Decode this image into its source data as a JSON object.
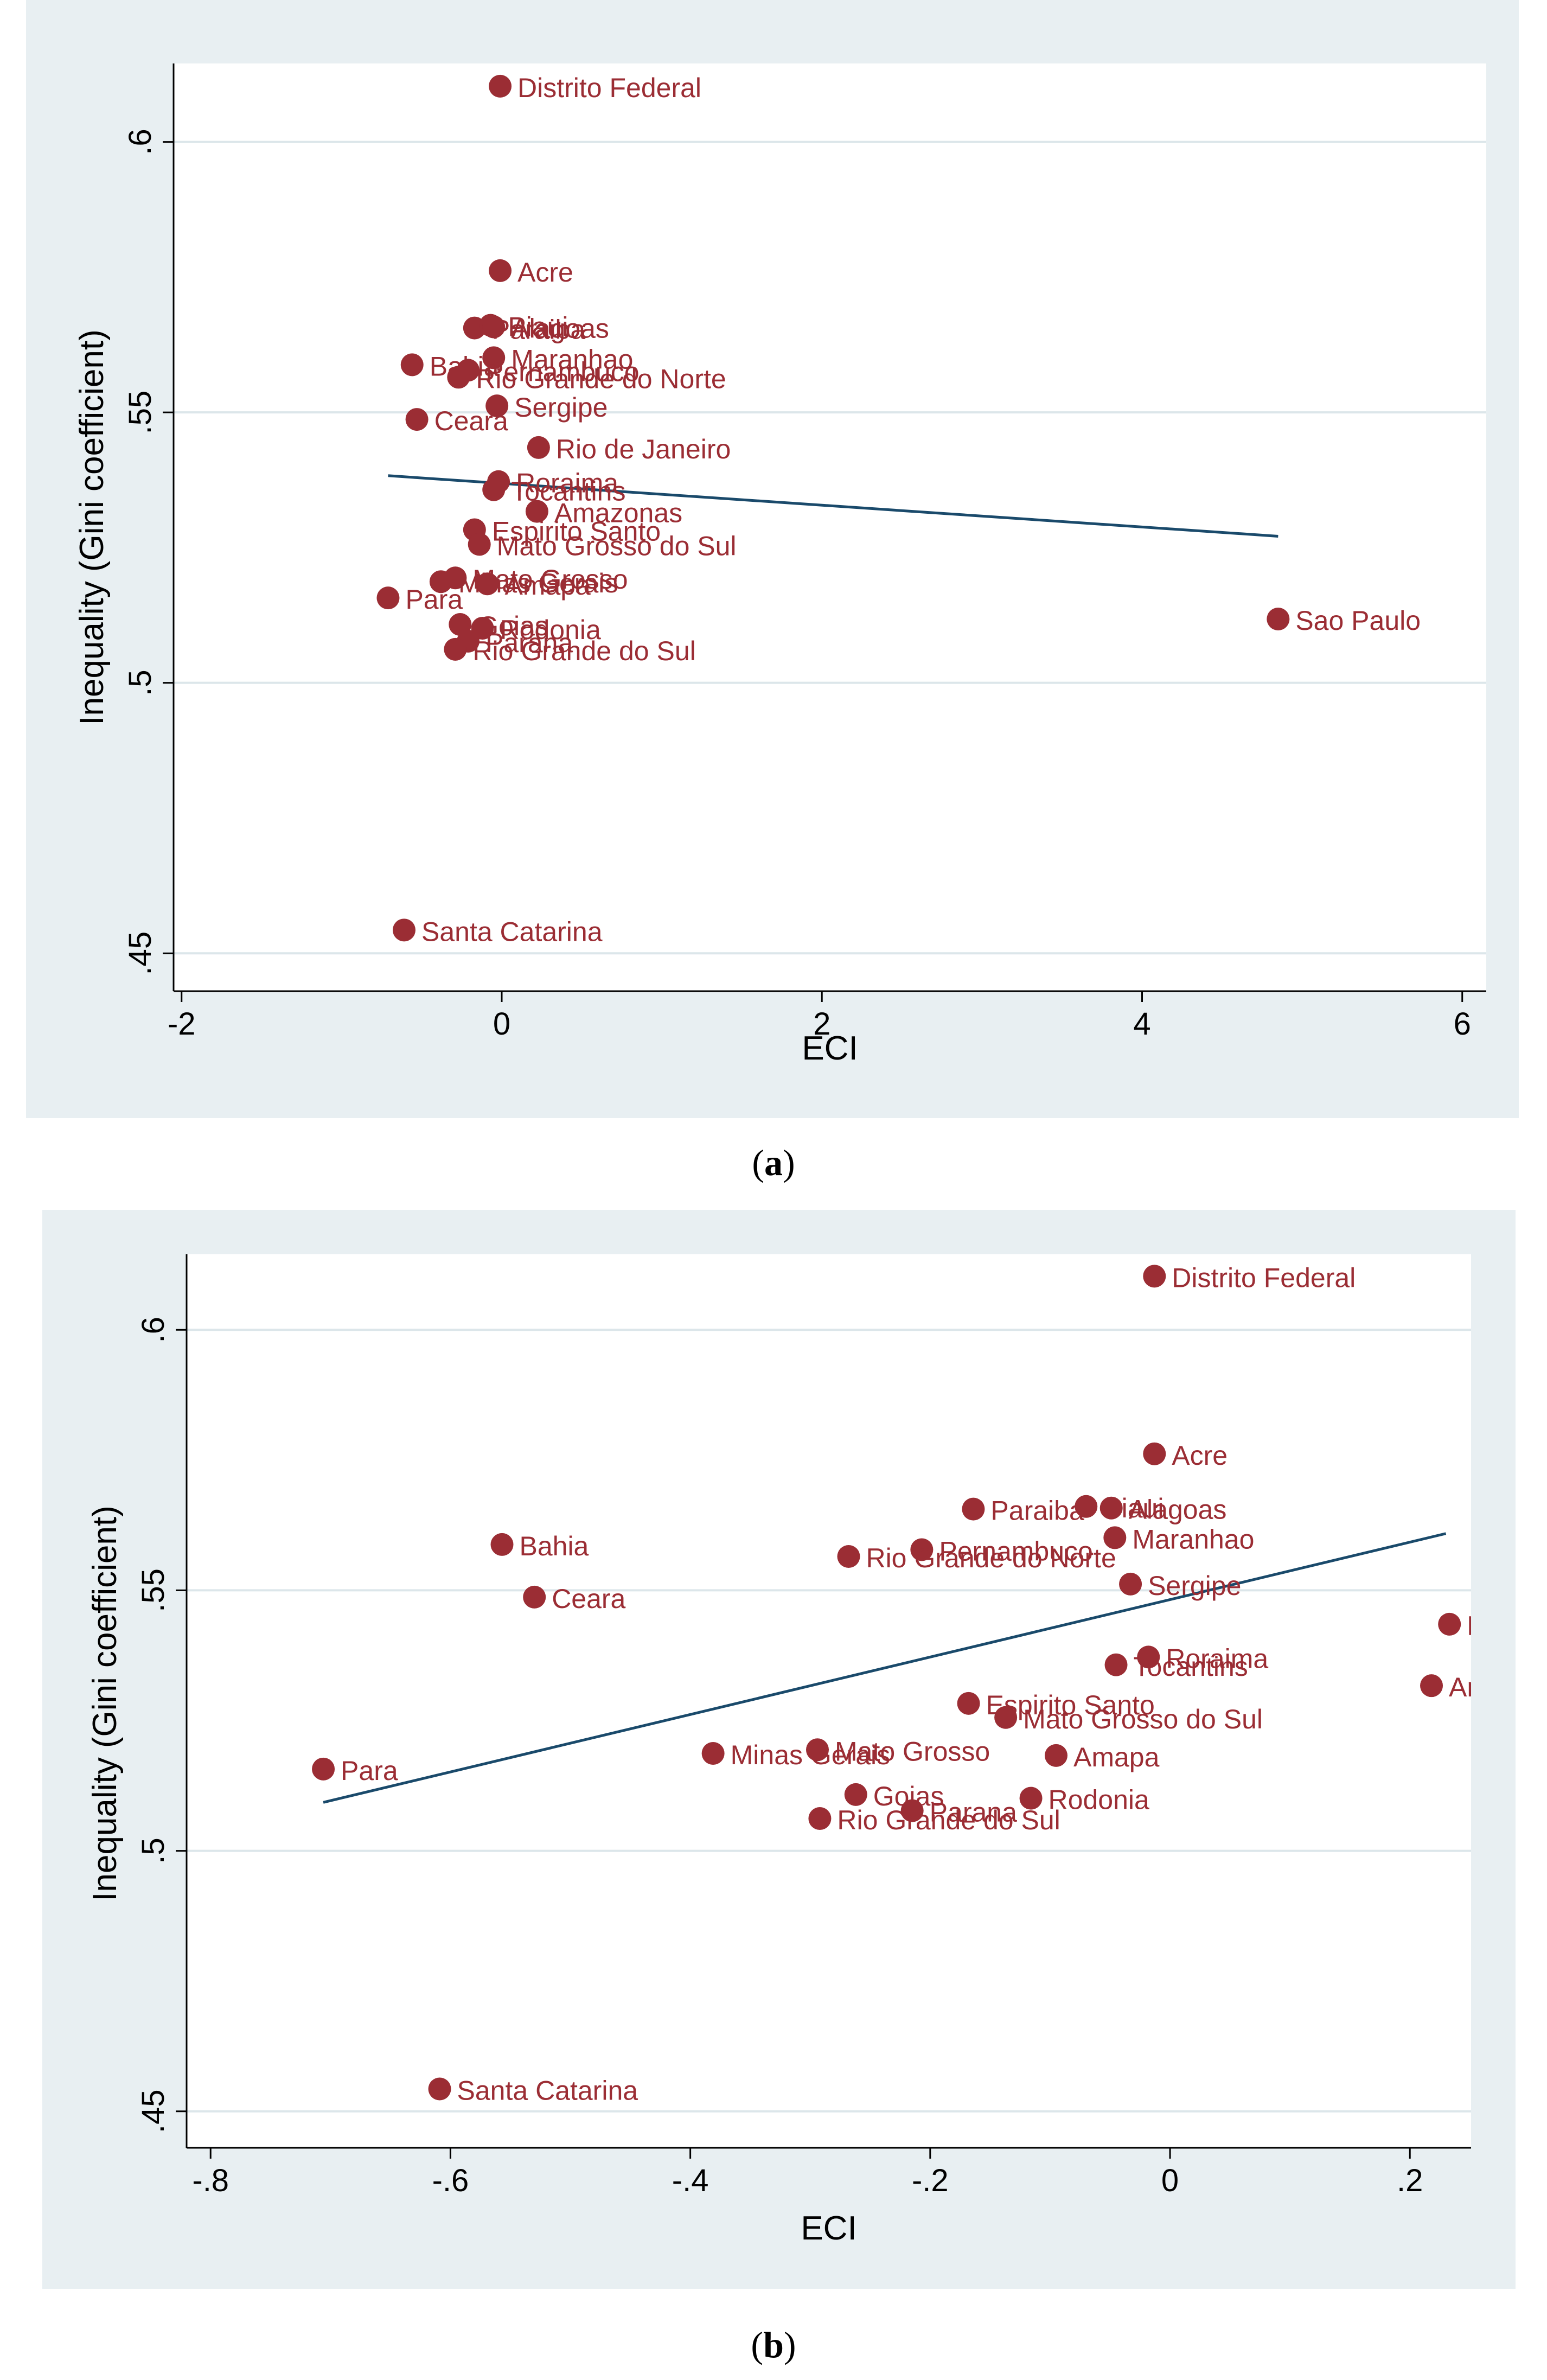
{
  "colors": {
    "panel_bg": "#e8eff2",
    "plot_bg": "#ffffff",
    "grid": "#dce6ea",
    "marker": "#9b2d34",
    "fit_line": "#1a4a6b",
    "axis": "#000000"
  },
  "panels": [
    {
      "caption": "(a)",
      "caption_letter": "a"
    },
    {
      "caption": "(b)",
      "caption_letter": "b"
    }
  ],
  "chart_data": [
    {
      "type": "scatter",
      "title": "",
      "xlabel": "ECI",
      "ylabel": "Inequality (Gini coefficient)",
      "xlim": [
        -2.05,
        6.15
      ],
      "ylim": [
        0.443,
        0.6145
      ],
      "xticks": [
        -2,
        0,
        2,
        4,
        6
      ],
      "xtick_labels": [
        "-2",
        "0",
        "2",
        "4",
        "6"
      ],
      "yticks": [
        0.45,
        0.5,
        0.55,
        0.6
      ],
      "ytick_labels": [
        ".45",
        ".5",
        ".55",
        ".6"
      ],
      "grid": "horizontal",
      "fit_line": {
        "x": [
          -0.71,
          4.85
        ],
        "y": [
          0.5383,
          0.5271
        ]
      },
      "points": [
        {
          "label": "Distrito Federal",
          "x": -0.01,
          "y": 0.6103
        },
        {
          "label": "Acre",
          "x": -0.01,
          "y": 0.5762
        },
        {
          "label": "Paraiba",
          "x": -0.17,
          "y": 0.5656
        },
        {
          "label": "Piaui",
          "x": -0.07,
          "y": 0.5661
        },
        {
          "label": "Alagoas",
          "x": -0.05,
          "y": 0.5658
        },
        {
          "label": "Maranhao",
          "x": -0.05,
          "y": 0.5601
        },
        {
          "label": "Bahia",
          "x": -0.56,
          "y": 0.5588
        },
        {
          "label": "Pernambuco",
          "x": -0.21,
          "y": 0.5578
        },
        {
          "label": "Rio Grande do Norte",
          "x": -0.27,
          "y": 0.5565
        },
        {
          "label": "Sergipe",
          "x": -0.03,
          "y": 0.5512
        },
        {
          "label": "Ceara",
          "x": -0.53,
          "y": 0.5487
        },
        {
          "label": "Rio de Janeiro",
          "x": 0.23,
          "y": 0.5435
        },
        {
          "label": "Roraima",
          "x": -0.02,
          "y": 0.5372
        },
        {
          "label": "Tocantins",
          "x": -0.05,
          "y": 0.5357
        },
        {
          "label": "Amazonas",
          "x": 0.22,
          "y": 0.5317
        },
        {
          "label": "Espirito Santo",
          "x": -0.17,
          "y": 0.5283
        },
        {
          "label": "Mato Grosso do Sul",
          "x": -0.14,
          "y": 0.5256
        },
        {
          "label": "Minas Gerais",
          "x": -0.38,
          "y": 0.5187
        },
        {
          "label": "Mato Grosso",
          "x": -0.29,
          "y": 0.5194
        },
        {
          "label": "Amapa",
          "x": -0.09,
          "y": 0.5183
        },
        {
          "label": "Para",
          "x": -0.71,
          "y": 0.5157
        },
        {
          "label": "Goias",
          "x": -0.26,
          "y": 0.5108
        },
        {
          "label": "Rodonia",
          "x": -0.12,
          "y": 0.5101
        },
        {
          "label": "Parana",
          "x": -0.21,
          "y": 0.5077
        },
        {
          "label": "Rio Grande do Sul",
          "x": -0.29,
          "y": 0.5062
        },
        {
          "label": "Sao Paulo",
          "x": 4.85,
          "y": 0.5118
        },
        {
          "label": "Santa Catarina",
          "x": -0.61,
          "y": 0.4543
        }
      ]
    },
    {
      "type": "scatter",
      "title": "",
      "xlabel": "ECI",
      "ylabel": "Inequality (Gini coefficient)",
      "xlim": [
        -0.82,
        0.251
      ],
      "ylim": [
        0.443,
        0.6145
      ],
      "xticks": [
        -0.8,
        -0.6,
        -0.4,
        -0.2,
        0,
        0.2
      ],
      "xtick_labels": [
        "-.8",
        "-.6",
        "-.4",
        "-.2",
        "0",
        ".2"
      ],
      "yticks": [
        0.45,
        0.5,
        0.55,
        0.6
      ],
      "ytick_labels": [
        ".45",
        ".5",
        ".55",
        ".6"
      ],
      "grid": "horizontal",
      "fit_line": {
        "x": [
          -0.706,
          0.23
        ],
        "y": [
          0.5093,
          0.5609
        ]
      },
      "points": [
        {
          "label": "Distrito Federal",
          "x": -0.013,
          "y": 0.6103
        },
        {
          "label": "Acre",
          "x": -0.013,
          "y": 0.5762
        },
        {
          "label": "Paraiba",
          "x": -0.164,
          "y": 0.5656
        },
        {
          "label": "Piaui",
          "x": -0.07,
          "y": 0.5661
        },
        {
          "label": "Alagoas",
          "x": -0.049,
          "y": 0.5658
        },
        {
          "label": "Maranhao",
          "x": -0.046,
          "y": 0.5601
        },
        {
          "label": "Bahia",
          "x": -0.557,
          "y": 0.5588
        },
        {
          "label": "Pernambuco",
          "x": -0.207,
          "y": 0.5578
        },
        {
          "label": "Rio Grande do Norte",
          "x": -0.268,
          "y": 0.5565
        },
        {
          "label": "Sergipe",
          "x": -0.033,
          "y": 0.5512
        },
        {
          "label": "Ceara",
          "x": -0.53,
          "y": 0.5487
        },
        {
          "label": "Rio de Janeiro",
          "x": 0.233,
          "y": 0.5435
        },
        {
          "label": "Roraima",
          "x": -0.018,
          "y": 0.5372
        },
        {
          "label": "Tocantins",
          "x": -0.045,
          "y": 0.5357
        },
        {
          "label": "Amazonas",
          "x": 0.218,
          "y": 0.5317
        },
        {
          "label": "Espirito Santo",
          "x": -0.168,
          "y": 0.5283
        },
        {
          "label": "Mato Grosso do Sul",
          "x": -0.137,
          "y": 0.5256
        },
        {
          "label": "Minas Gerais",
          "x": -0.381,
          "y": 0.5187
        },
        {
          "label": "Mato Grosso",
          "x": -0.294,
          "y": 0.5194
        },
        {
          "label": "Amapa",
          "x": -0.095,
          "y": 0.5183
        },
        {
          "label": "Para",
          "x": -0.706,
          "y": 0.5157
        },
        {
          "label": "Goias",
          "x": -0.262,
          "y": 0.5108
        },
        {
          "label": "Rodonia",
          "x": -0.116,
          "y": 0.5101
        },
        {
          "label": "Parana",
          "x": -0.215,
          "y": 0.5077
        },
        {
          "label": "Rio Grande do Sul",
          "x": -0.292,
          "y": 0.5062
        },
        {
          "label": "Santa Catarina",
          "x": -0.609,
          "y": 0.4543
        }
      ]
    }
  ]
}
